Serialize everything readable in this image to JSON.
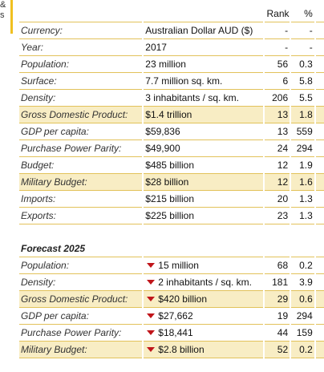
{
  "header": {
    "rank_label": "Rank",
    "pct_label": "%",
    "stub_text": "&\ns"
  },
  "rows": [
    {
      "label": "Currency:",
      "value": "Australian Dollar AUD ($)",
      "rank": "-",
      "pct": "-",
      "highlight": false
    },
    {
      "label": "Year:",
      "value": "2017",
      "rank": "-",
      "pct": "-",
      "highlight": false
    },
    {
      "label": "Population:",
      "value": "23 million",
      "rank": "56",
      "pct": "0.3",
      "highlight": false
    },
    {
      "label": "Surface:",
      "value": "7.7 million sq. km.",
      "rank": "6",
      "pct": "5.8",
      "highlight": false
    },
    {
      "label": "Density:",
      "value": "3 inhabitants / sq. km.",
      "rank": "206",
      "pct": "5.5",
      "highlight": false
    },
    {
      "label": "Gross Domestic Product:",
      "value": "$1.4 trillion",
      "rank": "13",
      "pct": "1.8",
      "highlight": true
    },
    {
      "label": "GDP per capita:",
      "value": "$59,836",
      "rank": "13",
      "pct": "559",
      "highlight": false
    },
    {
      "label": "Purchase Power Parity:",
      "value": "$49,900",
      "rank": "24",
      "pct": "294",
      "highlight": false
    },
    {
      "label": "Budget:",
      "value": "$485 billion",
      "rank": "12",
      "pct": "1.9",
      "highlight": false
    },
    {
      "label": "Military Budget:",
      "value": "$28 billion",
      "rank": "12",
      "pct": "1.6",
      "highlight": true
    },
    {
      "label": "Imports:",
      "value": "$215 billion",
      "rank": "20",
      "pct": "1.3",
      "highlight": false
    },
    {
      "label": "Exports:",
      "value": "$225 billion",
      "rank": "23",
      "pct": "1.3",
      "highlight": false
    }
  ],
  "forecast": {
    "title": "Forecast 2025",
    "rows": [
      {
        "label": "Population:",
        "value": "15 million",
        "rank": "68",
        "pct": "0.2",
        "highlight": false
      },
      {
        "label": "Density:",
        "value": "2 inhabitants / sq. km.",
        "rank": "181",
        "pct": "3.9",
        "highlight": false
      },
      {
        "label": "Gross Domestic Product:",
        "value": "$420 billion",
        "rank": "29",
        "pct": "0.6",
        "highlight": true
      },
      {
        "label": "GDP per capita:",
        "value": "$27,662",
        "rank": "19",
        "pct": "294",
        "highlight": false
      },
      {
        "label": "Purchase Power Parity:",
        "value": "$18,441",
        "rank": "44",
        "pct": "159",
        "highlight": false
      },
      {
        "label": "Military Budget:",
        "value": "$2.8 billion",
        "rank": "52",
        "pct": "0.2",
        "highlight": true
      }
    ],
    "trend_icon": "down-triangle-icon",
    "trend_color": "#c0151a"
  },
  "colors": {
    "highlight": "#f8edc4",
    "rule": "#e2c25a",
    "accent_bar": "#f0c020"
  }
}
